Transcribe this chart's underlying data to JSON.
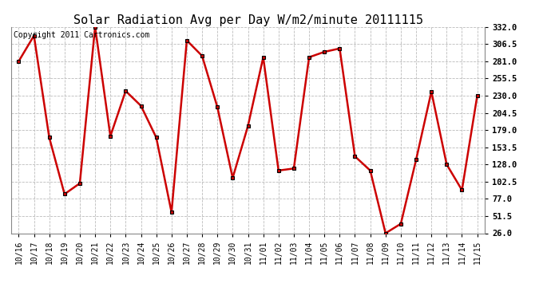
{
  "title": "Solar Radiation Avg per Day W/m2/minute 20111115",
  "copyright": "Copyright 2011 Cartronics.com",
  "labels": [
    "10/16",
    "10/17",
    "10/18",
    "10/19",
    "10/20",
    "10/21",
    "10/22",
    "10/23",
    "10/24",
    "10/25",
    "10/26",
    "10/27",
    "10/28",
    "10/29",
    "10/30",
    "10/31",
    "11/01",
    "11/02",
    "11/03",
    "11/04",
    "11/05",
    "11/06",
    "11/07",
    "11/08",
    "11/09",
    "11/10",
    "11/11",
    "11/12",
    "11/13",
    "11/14",
    "11/15"
  ],
  "values": [
    281.0,
    319.0,
    168.0,
    84.0,
    100.0,
    332.0,
    170.0,
    237.0,
    215.0,
    168.0,
    57.0,
    312.0,
    289.0,
    213.0,
    108.0,
    185.0,
    287.0,
    119.0,
    122.0,
    287.0,
    295.0,
    300.0,
    140.0,
    119.0,
    26.0,
    40.0,
    135.0,
    236.0,
    128.0,
    90.0,
    230.0
  ],
  "line_color": "#cc0000",
  "marker_facecolor": "#cc0000",
  "marker_edgecolor": "#000000",
  "bg_color": "#ffffff",
  "grid_color": "#bbbbbb",
  "ylim_min": 26.0,
  "ylim_max": 332.0,
  "yticks": [
    26.0,
    51.5,
    77.0,
    102.5,
    128.0,
    153.5,
    179.0,
    204.5,
    230.0,
    255.5,
    281.0,
    306.5,
    332.0
  ],
  "title_fontsize": 11,
  "copyright_fontsize": 7,
  "tick_fontsize": 7.5,
  "xtick_fontsize": 7
}
